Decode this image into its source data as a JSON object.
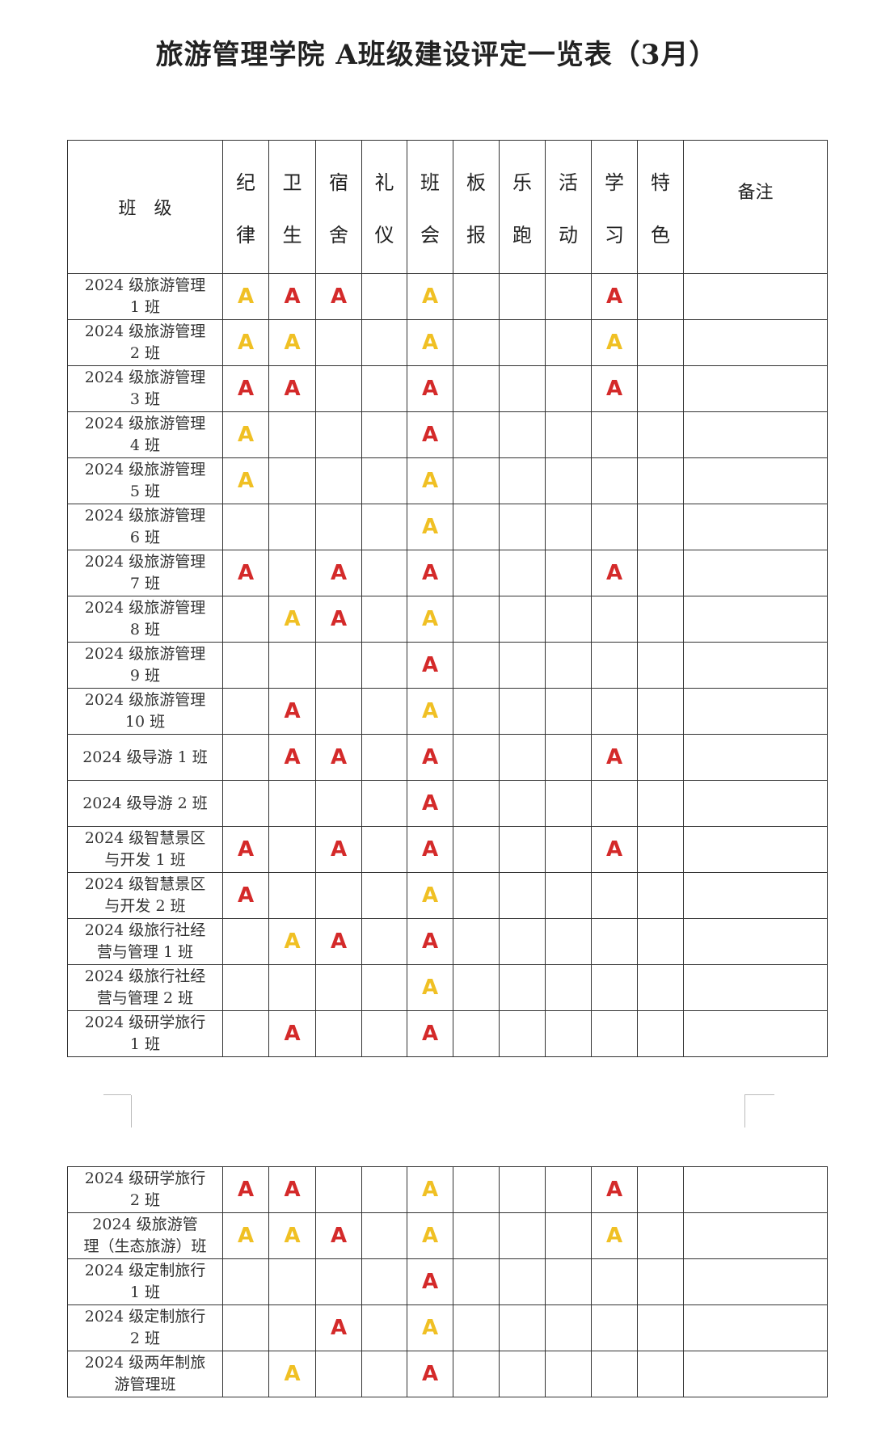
{
  "title": "旅游管理学院 A班级建设评定一览表（3月）",
  "colors": {
    "red": "#d42a2a",
    "yellow": "#f0c024"
  },
  "header": {
    "class_label": "班　级",
    "remarks_label": "备注",
    "columns": [
      [
        "纪",
        "律"
      ],
      [
        "卫",
        "生"
      ],
      [
        "宿",
        "舍"
      ],
      [
        "礼",
        "仪"
      ],
      [
        "班",
        "会"
      ],
      [
        "板",
        "报"
      ],
      [
        "乐",
        "跑"
      ],
      [
        "活",
        "动"
      ],
      [
        "学",
        "习"
      ],
      [
        "特",
        "色"
      ]
    ]
  },
  "rows": [
    {
      "name": [
        "2024 级旅游管理",
        "1 班"
      ],
      "marks": [
        "Y",
        "R",
        "R",
        "",
        "Y",
        "",
        "",
        "",
        "R",
        ""
      ]
    },
    {
      "name": [
        "2024 级旅游管理",
        "2 班"
      ],
      "marks": [
        "Y",
        "Y",
        "",
        "",
        "Y",
        "",
        "",
        "",
        "Y",
        ""
      ]
    },
    {
      "name": [
        "2024 级旅游管理",
        "3 班"
      ],
      "marks": [
        "R",
        "R",
        "",
        "",
        "R",
        "",
        "",
        "",
        "R",
        ""
      ]
    },
    {
      "name": [
        "2024 级旅游管理",
        "4 班"
      ],
      "marks": [
        "Y",
        "",
        "",
        "",
        "R",
        "",
        "",
        "",
        "",
        ""
      ]
    },
    {
      "name": [
        "2024 级旅游管理",
        "5 班"
      ],
      "marks": [
        "Y",
        "",
        "",
        "",
        "Y",
        "",
        "",
        "",
        "",
        ""
      ]
    },
    {
      "name": [
        "2024 级旅游管理",
        "6 班"
      ],
      "marks": [
        "",
        "",
        "",
        "",
        "Y",
        "",
        "",
        "",
        "",
        ""
      ]
    },
    {
      "name": [
        "2024 级旅游管理",
        "7 班"
      ],
      "marks": [
        "R",
        "",
        "R",
        "",
        "R",
        "",
        "",
        "",
        "R",
        ""
      ]
    },
    {
      "name": [
        "2024 级旅游管理",
        "8 班"
      ],
      "marks": [
        "",
        "Y",
        "R",
        "",
        "Y",
        "",
        "",
        "",
        "",
        ""
      ]
    },
    {
      "name": [
        "2024 级旅游管理",
        "9 班"
      ],
      "marks": [
        "",
        "",
        "",
        "",
        "R",
        "",
        "",
        "",
        "",
        ""
      ]
    },
    {
      "name": [
        "2024 级旅游管理",
        "10 班"
      ],
      "marks": [
        "",
        "R",
        "",
        "",
        "Y",
        "",
        "",
        "",
        "",
        ""
      ]
    },
    {
      "name": [
        "2024 级导游 1 班"
      ],
      "marks": [
        "",
        "R",
        "R",
        "",
        "R",
        "",
        "",
        "",
        "R",
        ""
      ]
    },
    {
      "name": [
        "2024 级导游 2 班"
      ],
      "marks": [
        "",
        "",
        "",
        "",
        "R",
        "",
        "",
        "",
        "",
        ""
      ]
    },
    {
      "name": [
        "2024 级智慧景区",
        "与开发 1 班"
      ],
      "marks": [
        "R",
        "",
        "R",
        "",
        "R",
        "",
        "",
        "",
        "R",
        ""
      ]
    },
    {
      "name": [
        "2024 级智慧景区",
        "与开发 2 班"
      ],
      "marks": [
        "R",
        "",
        "",
        "",
        "Y",
        "",
        "",
        "",
        "",
        ""
      ]
    },
    {
      "name": [
        "2024 级旅行社经",
        "营与管理 1 班"
      ],
      "marks": [
        "",
        "Y",
        "R",
        "",
        "R",
        "",
        "",
        "",
        "",
        ""
      ]
    },
    {
      "name": [
        "2024 级旅行社经",
        "营与管理 2 班"
      ],
      "marks": [
        "",
        "",
        "",
        "",
        "Y",
        "",
        "",
        "",
        "",
        ""
      ]
    },
    {
      "name": [
        "2024 级研学旅行",
        "1 班"
      ],
      "marks": [
        "",
        "R",
        "",
        "",
        "R",
        "",
        "",
        "",
        "",
        ""
      ]
    }
  ],
  "rows_page2": [
    {
      "name": [
        "2024 级研学旅行",
        "2 班"
      ],
      "marks": [
        "R",
        "R",
        "",
        "",
        "Y",
        "",
        "",
        "",
        "R",
        ""
      ]
    },
    {
      "name": [
        "2024 级旅游管",
        "理（生态旅游）班"
      ],
      "marks": [
        "Y",
        "Y",
        "R",
        "",
        "Y",
        "",
        "",
        "",
        "Y",
        ""
      ]
    },
    {
      "name": [
        "2024 级定制旅行",
        "1 班"
      ],
      "marks": [
        "",
        "",
        "",
        "",
        "R",
        "",
        "",
        "",
        "",
        ""
      ]
    },
    {
      "name": [
        "2024 级定制旅行",
        "2 班"
      ],
      "marks": [
        "",
        "",
        "R",
        "",
        "Y",
        "",
        "",
        "",
        "",
        ""
      ]
    },
    {
      "name": [
        "2024 级两年制旅",
        "游管理班"
      ],
      "marks": [
        "",
        "Y",
        "",
        "",
        "R",
        "",
        "",
        "",
        "",
        ""
      ]
    }
  ],
  "mark_text": "A"
}
